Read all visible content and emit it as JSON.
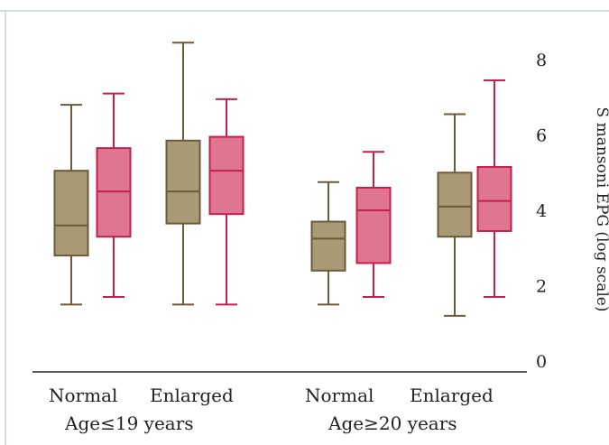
{
  "chart_data": {
    "type": "box",
    "ylabel": "S mansoni EPG (log scale)",
    "ylim": [
      0,
      8
    ],
    "yticks": [
      "0",
      "2",
      "4",
      "6",
      "8"
    ],
    "groups": [
      {
        "label": "Age≤19 years",
        "boxes": [
          {
            "category": "Normal",
            "color": "#a89a74",
            "stroke": "#6b5b3a",
            "min": 1.5,
            "q1": 2.8,
            "median": 3.6,
            "q3": 5.05,
            "max": 6.8
          },
          {
            "category": "Enlarged",
            "color": "#df7590",
            "stroke": "#c2204e",
            "min": 1.7,
            "q1": 3.3,
            "median": 4.5,
            "q3": 5.65,
            "max": 7.1
          }
        ]
      },
      {
        "label": "Age≤19 years",
        "boxes": [
          {
            "category": "Normal",
            "color": "#a89a74",
            "stroke": "#6b5b3a",
            "min": 1.5,
            "q1": 3.65,
            "median": 4.5,
            "q3": 5.85,
            "max": 8.45
          },
          {
            "category": "Enlarged",
            "color": "#df7590",
            "stroke": "#c2204e",
            "min": 1.5,
            "q1": 3.9,
            "median": 5.05,
            "q3": 5.95,
            "max": 6.95
          }
        ]
      },
      {
        "label": "Age≥20 years",
        "boxes": [
          {
            "category": "Normal",
            "color": "#a89a74",
            "stroke": "#6b5b3a",
            "min": 1.5,
            "q1": 2.4,
            "median": 3.25,
            "q3": 3.7,
            "max": 4.75
          },
          {
            "category": "Enlarged",
            "color": "#df7590",
            "stroke": "#c2204e",
            "min": 1.7,
            "q1": 2.6,
            "median": 4.0,
            "q3": 4.6,
            "max": 5.55
          }
        ]
      },
      {
        "label": "Age≥20 years",
        "boxes": [
          {
            "category": "Normal",
            "color": "#a89a74",
            "stroke": "#6b5b3a",
            "min": 1.2,
            "q1": 3.3,
            "median": 4.1,
            "q3": 5.0,
            "max": 6.55
          },
          {
            "category": "Enlarged",
            "color": "#df7590",
            "stroke": "#c2204e",
            "min": 1.7,
            "q1": 3.45,
            "median": 4.25,
            "q3": 5.15,
            "max": 7.45
          }
        ]
      }
    ],
    "category_labels": [
      {
        "row1": "Normal",
        "row1b": "Enlarged",
        "row2": "Age≤19 years"
      },
      {
        "row1": "Normal",
        "row1b": "Enlarged",
        "row2": "Age≥20 years"
      }
    ]
  }
}
